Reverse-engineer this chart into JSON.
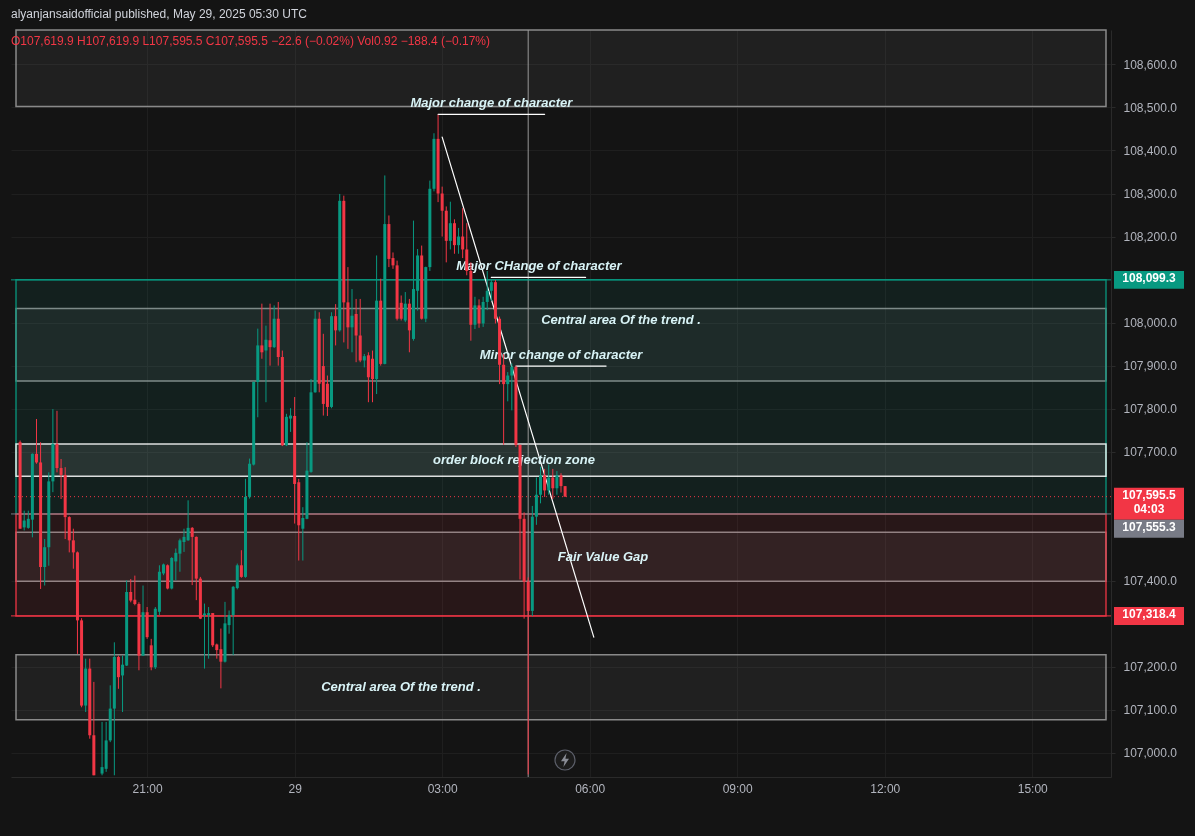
{
  "chart_data": {
    "type": "candlestick",
    "title": "alyanjansaidofficial published, May 29, 2025 05:30 UTC",
    "subtitle": "O107,619.9 H107,619.9 L107,595.5 C107,595.5 −22.6 (−0.02%) Vol0.92 −188.4 (−0.17%)",
    "x": [
      "2025-05-28T18:25",
      "2025-05-28T18:30",
      "2025-05-28T18:35",
      "2025-05-28T18:40",
      "2025-05-28T18:45",
      "2025-05-28T18:50",
      "2025-05-28T18:55",
      "2025-05-28T19:00",
      "2025-05-28T19:05",
      "2025-05-28T19:10",
      "2025-05-28T19:15",
      "2025-05-28T19:20",
      "2025-05-28T19:25",
      "2025-05-28T19:30",
      "2025-05-28T19:35",
      "2025-05-28T19:40",
      "2025-05-28T19:45",
      "2025-05-28T19:50",
      "2025-05-28T19:55",
      "2025-05-28T20:05",
      "2025-05-28T20:10",
      "2025-05-28T20:15",
      "2025-05-28T20:20",
      "2025-05-28T20:25",
      "2025-05-28T20:30",
      "2025-05-28T20:35",
      "2025-05-28T20:40",
      "2025-05-28T20:45",
      "2025-05-28T20:50",
      "2025-05-28T20:55",
      "2025-05-28T21:00",
      "2025-05-28T21:05",
      "2025-05-28T21:10",
      "2025-05-28T21:15",
      "2025-05-28T21:20",
      "2025-05-28T21:25",
      "2025-05-28T21:30",
      "2025-05-28T21:35",
      "2025-05-28T21:40",
      "2025-05-28T21:45",
      "2025-05-28T21:50",
      "2025-05-28T21:55",
      "2025-05-28T22:00",
      "2025-05-28T22:05",
      "2025-05-28T22:10",
      "2025-05-28T22:15",
      "2025-05-28T22:20",
      "2025-05-28T22:25",
      "2025-05-28T22:30",
      "2025-05-28T22:35",
      "2025-05-28T22:40",
      "2025-05-28T22:45",
      "2025-05-28T22:50",
      "2025-05-28T22:55",
      "2025-05-28T23:00",
      "2025-05-28T23:05",
      "2025-05-28T23:10",
      "2025-05-28T23:15",
      "2025-05-28T23:20",
      "2025-05-28T23:25",
      "2025-05-28T23:30",
      "2025-05-28T23:35",
      "2025-05-28T23:40",
      "2025-05-28T23:45",
      "2025-05-28T23:50",
      "2025-05-28T23:55",
      "2025-05-29T00:00",
      "2025-05-29T00:05",
      "2025-05-29T00:10",
      "2025-05-29T00:15",
      "2025-05-29T00:20",
      "2025-05-29T00:25",
      "2025-05-29T00:30",
      "2025-05-29T00:35",
      "2025-05-29T00:40",
      "2025-05-29T00:45",
      "2025-05-29T00:50",
      "2025-05-29T00:55",
      "2025-05-29T01:00",
      "2025-05-29T01:05",
      "2025-05-29T01:10",
      "2025-05-29T01:15",
      "2025-05-29T01:20",
      "2025-05-29T01:25",
      "2025-05-29T01:30",
      "2025-05-29T01:35",
      "2025-05-29T01:40",
      "2025-05-29T01:45",
      "2025-05-29T01:50",
      "2025-05-29T01:55",
      "2025-05-29T02:00",
      "2025-05-29T02:05",
      "2025-05-29T02:10",
      "2025-05-29T02:15",
      "2025-05-29T02:20",
      "2025-05-29T02:25",
      "2025-05-29T02:30",
      "2025-05-29T02:35",
      "2025-05-29T02:40",
      "2025-05-29T02:45",
      "2025-05-29T02:50",
      "2025-05-29T02:55",
      "2025-05-29T03:00",
      "2025-05-29T03:05",
      "2025-05-29T03:10",
      "2025-05-29T03:15",
      "2025-05-29T03:20",
      "2025-05-29T03:25",
      "2025-05-29T03:30",
      "2025-05-29T03:35",
      "2025-05-29T03:40",
      "2025-05-29T03:45",
      "2025-05-29T03:50",
      "2025-05-29T03:55",
      "2025-05-29T04:00",
      "2025-05-29T04:05",
      "2025-05-29T04:10",
      "2025-05-29T04:15",
      "2025-05-29T04:20",
      "2025-05-29T04:25",
      "2025-05-29T04:30",
      "2025-05-29T04:35",
      "2025-05-29T04:40",
      "2025-05-29T04:45",
      "2025-05-29T04:50",
      "2025-05-29T04:55",
      "2025-05-29T05:00",
      "2025-05-29T05:05",
      "2025-05-29T05:10",
      "2025-05-29T05:15",
      "2025-05-29T05:20",
      "2025-05-29T05:25",
      "2025-05-29T05:30"
    ],
    "ohlc": [
      [
        107722,
        107726,
        107521,
        107521
      ],
      [
        107524,
        107563,
        107517,
        107540
      ],
      [
        107523,
        107563,
        107521,
        107544
      ],
      [
        107542,
        107696,
        107501,
        107695
      ],
      [
        107695,
        107776,
        107672,
        107675
      ],
      [
        107675,
        107722,
        107381,
        107432
      ],
      [
        107432,
        107497,
        107389,
        107478
      ],
      [
        107478,
        107652,
        107435,
        107631
      ],
      [
        107631,
        107799,
        107606,
        107718
      ],
      [
        107718,
        107795,
        107652,
        107662
      ],
      [
        107662,
        107683,
        107590,
        107646
      ],
      [
        107646,
        107664,
        107497,
        107548
      ],
      [
        107548,
        107550,
        107466,
        107494
      ],
      [
        107494,
        107521,
        107428,
        107466
      ],
      [
        107466,
        107468,
        107230,
        107308
      ],
      [
        107308,
        107313,
        107106,
        107110
      ],
      [
        107110,
        107219,
        107095,
        107196
      ],
      [
        107196,
        107219,
        107033,
        107041
      ],
      [
        107041,
        107165,
        106948,
        106948
      ],
      [
        106952,
        107072,
        106948,
        106967
      ],
      [
        106963,
        107072,
        106956,
        107029
      ],
      [
        107029,
        107157,
        107025,
        107103
      ],
      [
        107103,
        107257,
        106948,
        107223
      ],
      [
        107223,
        107226,
        107149,
        107176
      ],
      [
        107180,
        107226,
        107095,
        107205
      ],
      [
        107203,
        107401,
        107202,
        107374
      ],
      [
        107374,
        107404,
        107350,
        107354
      ],
      [
        107356,
        107412,
        107343,
        107346
      ],
      [
        107346,
        107350,
        107192,
        107226
      ],
      [
        107226,
        107389,
        107225,
        107327
      ],
      [
        107327,
        107339,
        107265,
        107269
      ],
      [
        107250,
        107265,
        107192,
        107199
      ],
      [
        107199,
        107339,
        107195,
        107335
      ],
      [
        107328,
        107436,
        107320,
        107421
      ],
      [
        107417,
        107440,
        107413,
        107438
      ],
      [
        107436,
        107438,
        107380,
        107382
      ],
      [
        107382,
        107455,
        107380,
        107453
      ],
      [
        107445,
        107475,
        107401,
        107465
      ],
      [
        107463,
        107498,
        107421,
        107494
      ],
      [
        107490,
        107521,
        107467,
        107502
      ],
      [
        107494,
        107587,
        107493,
        107523
      ],
      [
        107523,
        107525,
        107390,
        107502
      ],
      [
        107502,
        107503,
        107355,
        107405
      ],
      [
        107405,
        107409,
        107311,
        107312
      ],
      [
        107320,
        107347,
        107196,
        107324
      ],
      [
        107320,
        107339,
        107219,
        107325
      ],
      [
        107325,
        107325,
        107246,
        107250
      ],
      [
        107252,
        107254,
        107219,
        107239
      ],
      [
        107241,
        107289,
        107150,
        107212
      ],
      [
        107212,
        107351,
        107210,
        107301
      ],
      [
        107297,
        107331,
        107277,
        107320
      ],
      [
        107320,
        107388,
        107227,
        107386
      ],
      [
        107383,
        107440,
        107380,
        107436
      ],
      [
        107436,
        107471,
        107407,
        107409
      ],
      [
        107409,
        107637,
        107407,
        107595
      ],
      [
        107595,
        107684,
        107591,
        107672
      ],
      [
        107670,
        107863,
        107668,
        107862
      ],
      [
        107862,
        107986,
        107780,
        107947
      ],
      [
        107947,
        108044,
        107916,
        107931
      ],
      [
        107935,
        107993,
        107815,
        107960
      ],
      [
        107959,
        108044,
        107900,
        107943
      ],
      [
        107943,
        108040,
        107941,
        108009
      ],
      [
        108009,
        108048,
        107900,
        107920
      ],
      [
        107920,
        107935,
        107713,
        107715
      ],
      [
        107715,
        107788,
        107713,
        107781
      ],
      [
        107777,
        107801,
        107746,
        107784
      ],
      [
        107783,
        107827,
        107533,
        107625
      ],
      [
        107629,
        107637,
        107447,
        107529
      ],
      [
        107521,
        107571,
        107447,
        107546
      ],
      [
        107544,
        107722,
        107543,
        107656
      ],
      [
        107653,
        107869,
        107651,
        107838
      ],
      [
        107838,
        108028,
        107837,
        108009
      ],
      [
        108009,
        108024,
        107838,
        107858
      ],
      [
        107899,
        107974,
        107784,
        107811
      ],
      [
        107858,
        107877,
        107783,
        107804
      ],
      [
        107804,
        108024,
        107801,
        108015
      ],
      [
        108015,
        108043,
        107947,
        107982
      ],
      [
        107982,
        108299,
        107979,
        108283
      ],
      [
        108283,
        108295,
        107954,
        108047
      ],
      [
        108047,
        108129,
        107939,
        107989
      ],
      [
        107989,
        108078,
        107931,
        108016
      ],
      [
        108020,
        108055,
        107908,
        107970
      ],
      [
        107970,
        108055,
        107908,
        107912
      ],
      [
        107912,
        107927,
        107896,
        107922
      ],
      [
        107924,
        107931,
        107815,
        107873
      ],
      [
        107916,
        107935,
        107815,
        107869
      ],
      [
        107869,
        108156,
        107834,
        108051
      ],
      [
        108051,
        108102,
        107900,
        107904
      ],
      [
        107904,
        108342,
        107903,
        108229
      ],
      [
        108229,
        108249,
        108129,
        108148
      ],
      [
        108150,
        108163,
        108125,
        108133
      ],
      [
        108133,
        108144,
        108005,
        108009
      ],
      [
        108046,
        108063,
        108005,
        108009
      ],
      [
        108005,
        108071,
        108001,
        108044
      ],
      [
        108044,
        108055,
        107931,
        107982
      ],
      [
        107962,
        108237,
        107958,
        108078
      ],
      [
        108074,
        108171,
        108028,
        108156
      ],
      [
        108156,
        108179,
        108007,
        108009
      ],
      [
        108009,
        108130,
        108001,
        108129
      ],
      [
        108129,
        108330,
        108120,
        108311
      ],
      [
        108311,
        108440,
        108305,
        108427
      ],
      [
        108427,
        108483,
        108280,
        108300
      ],
      [
        108300,
        108316,
        108200,
        108260
      ],
      [
        108260,
        108270,
        108140,
        108190
      ],
      [
        108190,
        108281,
        108170,
        108231
      ],
      [
        108231,
        108240,
        108160,
        108180
      ],
      [
        108180,
        108220,
        108160,
        108200
      ],
      [
        108200,
        108266,
        108150,
        108170
      ],
      [
        108170,
        108231,
        108110,
        108120
      ],
      [
        108120,
        108140,
        107958,
        107995
      ],
      [
        107995,
        108060,
        107985,
        108040
      ],
      [
        108040,
        108054,
        107988,
        107998
      ],
      [
        107998,
        108060,
        107990,
        108048
      ],
      [
        108048,
        108120,
        108029,
        108074
      ],
      [
        108074,
        108099,
        108050,
        108094
      ],
      [
        108094,
        108099,
        107998,
        108009
      ],
      [
        108009,
        108014,
        107857,
        107902
      ],
      [
        107902,
        107927,
        107716,
        107857
      ],
      [
        107857,
        107885,
        107817,
        107877
      ],
      [
        107877,
        107905,
        107796,
        107897
      ],
      [
        107897,
        107900,
        107711,
        107716
      ],
      [
        107716,
        107716,
        107403,
        107544
      ],
      [
        107544,
        107559,
        107312,
        107398
      ],
      [
        107398,
        107408,
        106950,
        107330
      ],
      [
        107330,
        107574,
        107318,
        107549
      ],
      [
        107549,
        107640,
        107530,
        107600
      ],
      [
        107600,
        107665,
        107580,
        107645
      ],
      [
        107645,
        107660,
        107595,
        107610
      ],
      [
        107610,
        107670,
        107600,
        107640
      ],
      [
        107640,
        107660,
        107590,
        107615
      ],
      [
        107615,
        107655,
        107600,
        107645
      ],
      [
        107645,
        107650,
        107605,
        107620
      ],
      [
        107619.9,
        107619.9,
        107595.5,
        107595.5
      ]
    ],
    "colors": [
      "#f23645",
      "#089981",
      "#089981",
      "#089981",
      "#f23645",
      "#f23645",
      "#089981",
      "#089981",
      "#089981",
      "#f23645",
      "#f23645",
      "#f23645",
      "#f23645",
      "#f23645",
      "#f23645",
      "#f23645",
      "#089981",
      "#f23645",
      "#f23645",
      "#089981",
      "#089981",
      "#089981",
      "#089981",
      "#f23645",
      "#089981",
      "#089981",
      "#f23645",
      "#f23645",
      "#f23645",
      "#089981",
      "#f23645",
      "#f23645",
      "#089981",
      "#089981",
      "#089981",
      "#f23645",
      "#089981",
      "#089981",
      "#089981",
      "#089981",
      "#089981",
      "#f23645",
      "#f23645",
      "#f23645",
      "#089981",
      "#089981",
      "#f23645",
      "#f23645",
      "#f23645",
      "#089981",
      "#089981",
      "#089981",
      "#089981",
      "#f23645",
      "#089981",
      "#089981",
      "#089981",
      "#089981",
      "#f23645",
      "#089981",
      "#f23645",
      "#089981",
      "#f23645",
      "#f23645",
      "#089981",
      "#089981",
      "#f23645",
      "#f23645",
      "#089981",
      "#089981",
      "#089981",
      "#089981",
      "#f23645",
      "#f23645",
      "#f23645",
      "#089981",
      "#f23645",
      "#089981",
      "#f23645",
      "#f23645",
      "#089981",
      "#f23645",
      "#f23645",
      "#089981",
      "#f23645",
      "#f23645",
      "#089981",
      "#f23645",
      "#089981",
      "#f23645",
      "#f23645",
      "#f23645",
      "#f23645",
      "#089981",
      "#f23645",
      "#089981",
      "#089981",
      "#f23645",
      "#089981",
      "#089981",
      "#089981",
      "#f23645",
      "#f23645",
      "#f23645",
      "#089981",
      "#f23645",
      "#089981",
      "#f23645",
      "#f23645",
      "#f23645",
      "#089981",
      "#f23645",
      "#089981",
      "#089981",
      "#089981",
      "#f23645",
      "#f23645",
      "#f23645",
      "#089981",
      "#089981",
      "#f23645",
      "#f23645",
      "#f23645",
      "#f23645",
      "#089981",
      "#089981",
      "#089981",
      "#f23645",
      "#089981",
      "#f23645",
      "#089981",
      "#f23645",
      "#f23645"
    ],
    "xlim": [
      "2025-05-28T18:20",
      "2025-05-29T16:30"
    ],
    "xticks": [
      {
        "value": "2025-05-28T21:00",
        "label": "21:00"
      },
      {
        "value": "2025-05-29T00:00",
        "label": "29"
      },
      {
        "value": "2025-05-29T03:00",
        "label": "03:00"
      },
      {
        "value": "2025-05-29T06:00",
        "label": "06:00"
      },
      {
        "value": "2025-05-29T09:00",
        "label": "09:00"
      },
      {
        "value": "2025-05-29T12:00",
        "label": "12:00"
      },
      {
        "value": "2025-05-29T15:00",
        "label": "15:00"
      }
    ],
    "ylim": [
      106944,
      108680
    ],
    "yticks": [
      {
        "value": 107000,
        "label": "107,000.0"
      },
      {
        "value": 107100,
        "label": "107,100.0"
      },
      {
        "value": 107200,
        "label": "107,200.0"
      },
      {
        "value": 107400,
        "label": "107,400.0"
      },
      {
        "value": 107700,
        "label": "107,700.0"
      },
      {
        "value": 107800,
        "label": "107,800.0"
      },
      {
        "value": 107900,
        "label": "107,900.0"
      },
      {
        "value": 108000,
        "label": "108,000.0"
      },
      {
        "value": 108200,
        "label": "108,200.0"
      },
      {
        "value": 108300,
        "label": "108,300.0"
      },
      {
        "value": 108400,
        "label": "108,400.0"
      },
      {
        "value": 108500,
        "label": "108,500.0"
      },
      {
        "value": 108600,
        "label": "108,600.0"
      }
    ],
    "grid": true,
    "bands": [
      {
        "axis": "y",
        "from": 108502,
        "to": 108680,
        "color": "#9e9e9e"
      },
      {
        "axis": "y",
        "from": 107864,
        "to": 108033,
        "color": "#9e9e9e",
        "label": "Central area Of the trend ."
      },
      {
        "axis": "y",
        "from": 107077,
        "to": 107228,
        "color": "#9e9e9e",
        "label": "Central area Of the trend ."
      },
      {
        "axis": "y",
        "from": 107399,
        "to": 107513,
        "color": "#9e9e9e",
        "label": "Fair Value Gap"
      },
      {
        "axis": "y",
        "from": 107555.3,
        "to": 108099.3,
        "color": "#089981"
      },
      {
        "axis": "y",
        "from": 107318.4,
        "to": 107555.3,
        "color": "#f23645"
      },
      {
        "axis": "y",
        "from": 107643,
        "to": 107718,
        "color": "#ffffff",
        "label": "order block rejection zone"
      }
    ],
    "ref_lines": [
      {
        "axis": "x",
        "value": "2025-05-29T04:45",
        "color": "#9e9e9e"
      },
      {
        "axis": "y",
        "value": 107595.5,
        "label": "107,595.5\n04:03",
        "color": "#f23645",
        "line_style": "dotted"
      },
      {
        "axis": "y",
        "value": 108099.3,
        "label": "108,099.3",
        "color": "#089981"
      },
      {
        "axis": "y",
        "value": 107555.3,
        "label": "107,555.3",
        "color": "#787b86"
      },
      {
        "axis": "y",
        "value": 107318.4,
        "label": "107,318.4",
        "color": "#f23645"
      }
    ],
    "series": [
      {
        "type": "line",
        "color": "#ffffff",
        "x": [
          "2025-05-29T03:00",
          "2025-05-29T06:05"
        ],
        "values": [
          108431,
          107269
        ]
      },
      {
        "type": "line",
        "color": "#ffffff",
        "x": [
          "2025-05-29T02:55",
          "2025-05-29T05:05"
        ],
        "values": [
          108484,
          108484
        ]
      },
      {
        "type": "line",
        "color": "#ffffff",
        "x": [
          "2025-05-29T04:00",
          "2025-05-29T05:55"
        ],
        "values": [
          108105,
          108105
        ]
      },
      {
        "type": "line",
        "color": "#ffffff",
        "x": [
          "2025-05-29T04:30",
          "2025-05-29T06:20"
        ],
        "values": [
          107899,
          107899
        ]
      }
    ],
    "annotations": [
      {
        "text": "Major change of character",
        "x": "2025-05-29T04:00",
        "y": 108484
      },
      {
        "text": "Major CHange of character",
        "x": "2025-05-29T04:58",
        "y": 108105
      },
      {
        "text": "Minor change of character",
        "x": "2025-05-29T05:25",
        "y": 107899
      }
    ]
  }
}
